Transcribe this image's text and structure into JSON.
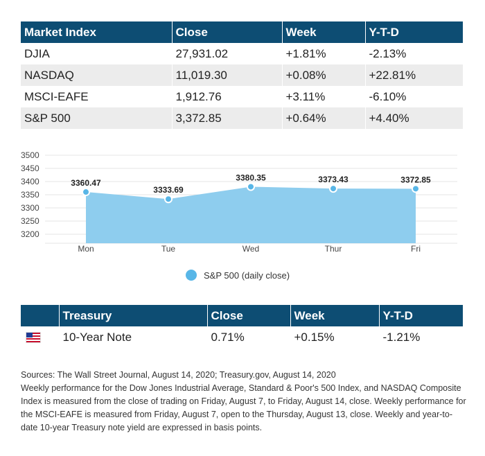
{
  "market_table": {
    "headers": [
      "Market Index",
      "Close",
      "Week",
      "Y-T-D"
    ],
    "rows": [
      [
        "DJIA",
        "27,931.02",
        "+1.81%",
        "-2.13%"
      ],
      [
        "NASDAQ",
        "11,019.30",
        "+0.08%",
        "+22.81%"
      ],
      [
        "MSCI-EAFE",
        "1,912.76",
        "+3.11%",
        "-6.10%"
      ],
      [
        "S&P 500",
        "3,372.85",
        "+0.64%",
        "+4.40%"
      ]
    ]
  },
  "chart_data": {
    "type": "area",
    "categories": [
      "Mon",
      "Tue",
      "Wed",
      "Thur",
      "Fri"
    ],
    "series": [
      {
        "name": "S&P 500 (daily close)",
        "values": [
          3360.47,
          3333.69,
          3380.35,
          3373.43,
          3372.85
        ]
      }
    ],
    "data_labels": [
      "3360.47",
      "3333.69",
      "3380.35",
      "3373.43",
      "3372.85"
    ],
    "y_ticks": [
      3500,
      3450,
      3400,
      3350,
      3300,
      3250,
      3200
    ],
    "ylim": [
      3200,
      3500
    ],
    "grid": true,
    "legend_position": "bottom",
    "color": "#8ecdee",
    "marker_color": "#58b6e7"
  },
  "treasury_table": {
    "headers": [
      "",
      "Treasury",
      "Close",
      "Week",
      "Y-T-D"
    ],
    "rows": [
      {
        "icon": "us-flag-icon",
        "name": "10-Year Note",
        "close": "0.71%",
        "week": "+0.15%",
        "ytd": "-1.21%"
      }
    ]
  },
  "notes": {
    "sources": "Sources: The Wall Street Journal, August 14, 2020; Treasury.gov, August 14, 2020",
    "body": "Weekly performance for the Dow Jones Industrial Average, Standard & Poor's 500 Index, and NASDAQ Composite Index is measured from the close of trading on Friday, August 7, to Friday, August 14, close. Weekly performance for the MSCI-EAFE is measured from Friday, August 7, open to the Thursday, August 13, close. Weekly and year-to-date 10-year Treasury note yield are expressed in basis points."
  },
  "colors": {
    "header_bg": "#0d4d73",
    "stripe_bg": "#ececec",
    "area_fill": "#8ecdee",
    "marker": "#58b6e7"
  }
}
